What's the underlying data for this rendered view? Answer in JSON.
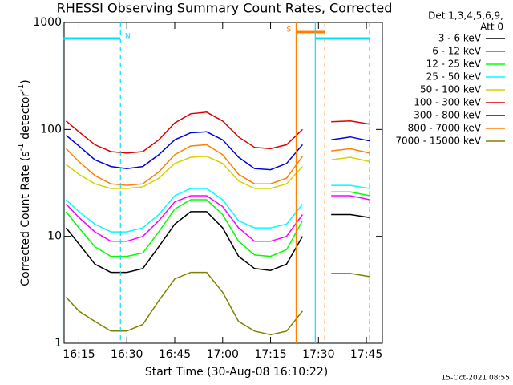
{
  "chart_data": {
    "type": "line",
    "title": "RHESSI Observing Summary Count Rates, Corrected",
    "xlabel": "Start Time (30-Aug-08 16:10:22)",
    "ylabel_parts": [
      "Corrected Count Rate (s",
      "-1",
      " detector",
      "-1",
      ")"
    ],
    "legend_header": [
      "Det 1,3,4,5,6,9,",
      "Att 0"
    ],
    "footer": "15-Oct-2021 08:55",
    "log_y": true,
    "xlim": [
      "16:10:22",
      "17:50"
    ],
    "xticks": [
      "16:15",
      "16:30",
      "16:45",
      "17:00",
      "17:15",
      "17:30",
      "17:45"
    ],
    "ylim": [
      1,
      1000
    ],
    "yticks": [
      1,
      10,
      100,
      1000
    ],
    "x": [
      "16:11",
      "16:15",
      "16:20",
      "16:25",
      "16:30",
      "16:35",
      "16:40",
      "16:45",
      "16:50",
      "16:55",
      "17:00",
      "17:05",
      "17:10",
      "17:15",
      "17:20",
      "17:25",
      "17:28",
      "17:34",
      "17:40",
      "17:46"
    ],
    "series": [
      {
        "name": "3 - 6 keV",
        "color": "#000000",
        "values": [
          12,
          8.5,
          5.5,
          4.6,
          4.6,
          5,
          8,
          13,
          17,
          17,
          12,
          6.5,
          5,
          4.8,
          5.5,
          10,
          null,
          16,
          16,
          15
        ]
      },
      {
        "name": "6 - 12 keV",
        "color": "#ff00ff",
        "values": [
          20,
          15,
          11,
          9,
          9,
          10,
          14,
          21,
          24,
          24,
          19,
          12,
          9,
          9,
          10,
          16,
          null,
          24,
          24,
          22
        ]
      },
      {
        "name": "12 - 25 keV",
        "color": "#00ff00",
        "values": [
          17,
          12,
          8,
          6.5,
          6.5,
          7,
          11,
          18,
          22,
          22,
          16,
          9,
          6.7,
          6.5,
          7.5,
          14,
          null,
          26,
          26,
          24
        ]
      },
      {
        "name": "25 - 50 keV",
        "color": "#00ffff",
        "values": [
          22,
          17,
          13,
          11,
          11,
          12,
          16,
          24,
          28,
          28,
          22,
          14,
          12,
          12,
          13,
          20,
          null,
          30,
          30,
          28
        ]
      },
      {
        "name": "50 - 100 keV",
        "color": "#d4d400",
        "values": [
          47,
          38,
          31,
          28,
          28,
          29,
          35,
          48,
          55,
          56,
          48,
          33,
          28,
          28,
          31,
          45,
          null,
          52,
          55,
          50
        ]
      },
      {
        "name": "100 - 300 keV",
        "color": "#e00000",
        "values": [
          120,
          95,
          72,
          62,
          60,
          62,
          80,
          115,
          140,
          145,
          120,
          85,
          68,
          66,
          72,
          100,
          null,
          118,
          120,
          112
        ]
      },
      {
        "name": "300 - 800 keV",
        "color": "#0000e0",
        "values": [
          88,
          70,
          52,
          45,
          43,
          45,
          58,
          80,
          93,
          95,
          80,
          55,
          43,
          42,
          48,
          72,
          null,
          80,
          85,
          78
        ]
      },
      {
        "name": "800 - 7000 keV",
        "color": "#ff8000",
        "values": [
          66,
          50,
          37,
          31,
          30,
          31,
          40,
          58,
          70,
          72,
          58,
          38,
          31,
          31,
          35,
          56,
          null,
          63,
          66,
          60
        ]
      },
      {
        "name": "7000 - 15000 keV",
        "color": "#808000",
        "values": [
          2.7,
          2,
          1.6,
          1.3,
          1.3,
          1.5,
          2.5,
          4,
          4.6,
          4.6,
          3,
          1.6,
          1.3,
          1.2,
          1.3,
          2,
          null,
          4.5,
          4.5,
          4.2
        ]
      }
    ],
    "intervals": [
      {
        "label": "N",
        "color": "#00e0ff",
        "start": "16:10",
        "end": "16:28"
      },
      {
        "label": "S",
        "color": "#ff8000",
        "start": "17:23",
        "end": "17:32"
      },
      {
        "color": "#00e0ff",
        "start": "17:29",
        "end": "17:46"
      }
    ]
  }
}
